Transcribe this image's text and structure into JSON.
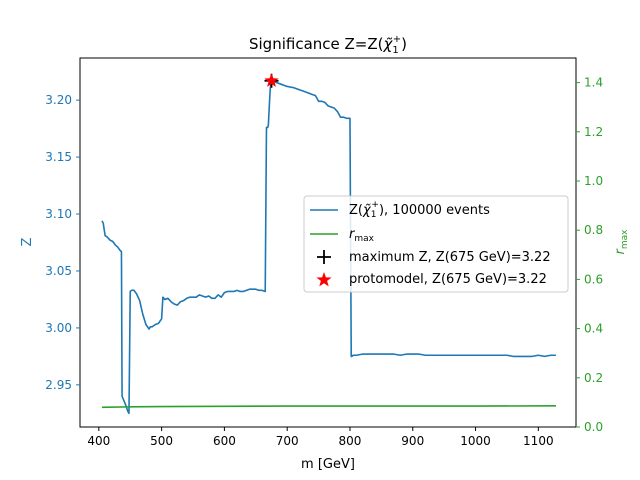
{
  "chart_data": {
    "type": "line",
    "title": "Significance Z=Z(χ̃₁⁺)",
    "xlabel": "m [GeV]",
    "ylabel_left": "Z",
    "ylabel_right": "r_max",
    "xlim": [
      370,
      1160
    ],
    "ylim_left": [
      2.913,
      3.237
    ],
    "ylim_right": [
      0.0,
      1.5
    ],
    "x_ticks": [
      400,
      500,
      600,
      700,
      800,
      900,
      1000,
      1100
    ],
    "y_ticks_left": [
      2.95,
      3.0,
      3.05,
      3.1,
      3.15,
      3.2
    ],
    "y_ticks_right": [
      0.0,
      0.2,
      0.4,
      0.6,
      0.8,
      1.0,
      1.2,
      1.4
    ],
    "grid": false,
    "legend_position": "center-right",
    "colors": {
      "z": "#1f77b4",
      "rmax": "#2ca02c",
      "max": "#000000",
      "proto": "#ff0000"
    },
    "series": [
      {
        "name": "Z(χ̃₁⁺), 100000 events",
        "axis": "left",
        "x": [
          405,
          407,
          410,
          413,
          418,
          422,
          426,
          430,
          434,
          436,
          437,
          440,
          443,
          446,
          448,
          450,
          452,
          456,
          460,
          465,
          470,
          475,
          480,
          482,
          485,
          490,
          495,
          500,
          502,
          505,
          510,
          515,
          520,
          525,
          530,
          535,
          540,
          545,
          550,
          555,
          560,
          565,
          570,
          575,
          580,
          585,
          590,
          595,
          600,
          605,
          610,
          615,
          620,
          625,
          630,
          635,
          640,
          645,
          650,
          655,
          660,
          665,
          667,
          669,
          670,
          672,
          673,
          675,
          678,
          680,
          685,
          690,
          700,
          710,
          720,
          730,
          740,
          745,
          750,
          755,
          760,
          765,
          770,
          775,
          780,
          785,
          790,
          795,
          800,
          802,
          803,
          805,
          810,
          820,
          830,
          840,
          850,
          860,
          870,
          880,
          890,
          900,
          910,
          920,
          930,
          940,
          950,
          960,
          970,
          980,
          990,
          1000,
          1010,
          1020,
          1030,
          1040,
          1050,
          1060,
          1070,
          1080,
          1090,
          1100,
          1110,
          1120,
          1128
        ],
        "y": [
          3.094,
          3.092,
          3.081,
          3.08,
          3.077,
          3.076,
          3.073,
          3.071,
          3.068,
          3.067,
          2.94,
          2.936,
          2.932,
          2.927,
          2.925,
          3.032,
          3.033,
          3.033,
          3.03,
          3.024,
          3.012,
          3.003,
          2.999,
          3.001,
          3.001,
          3.003,
          3.004,
          3.008,
          3.027,
          3.025,
          3.026,
          3.023,
          3.021,
          3.02,
          3.023,
          3.024,
          3.026,
          3.027,
          3.027,
          3.027,
          3.029,
          3.028,
          3.027,
          3.028,
          3.026,
          3.026,
          3.029,
          3.027,
          3.031,
          3.032,
          3.032,
          3.032,
          3.033,
          3.032,
          3.032,
          3.033,
          3.034,
          3.034,
          3.034,
          3.033,
          3.033,
          3.032,
          3.176,
          3.176,
          3.178,
          3.2,
          3.21,
          3.217,
          3.217,
          3.216,
          3.215,
          3.214,
          3.212,
          3.211,
          3.209,
          3.207,
          3.205,
          3.204,
          3.199,
          3.199,
          3.198,
          3.195,
          3.194,
          3.193,
          3.19,
          3.185,
          3.185,
          3.184,
          3.184,
          2.975,
          2.975,
          2.976,
          2.976,
          2.977,
          2.977,
          2.977,
          2.977,
          2.977,
          2.977,
          2.976,
          2.977,
          2.977,
          2.977,
          2.976,
          2.976,
          2.976,
          2.976,
          2.976,
          2.976,
          2.976,
          2.976,
          2.976,
          2.976,
          2.976,
          2.976,
          2.976,
          2.976,
          2.975,
          2.975,
          2.975,
          2.975,
          2.976,
          2.975,
          2.976,
          2.976
        ]
      },
      {
        "name": "r_max",
        "axis": "right",
        "x": [
          405,
          450,
          500,
          600,
          700,
          800,
          900,
          1000,
          1128
        ],
        "y": [
          0.08,
          0.082,
          0.083,
          0.084,
          0.085,
          0.085,
          0.085,
          0.085,
          0.086
        ]
      }
    ],
    "markers": [
      {
        "name": "maximum Z, Z(675 GeV)=3.22",
        "x": 675,
        "y": 3.217,
        "symbol": "plus"
      },
      {
        "name": "protomodel, Z(675 GeV)=3.22",
        "x": 675,
        "y": 3.217,
        "symbol": "star"
      }
    ],
    "legend": {
      "z_name": "Z(",
      "z_chi": "χ̃",
      "z_sub": "1",
      "z_sup": "+",
      "z_rest": "), 100000 events",
      "rmax_r": "r",
      "rmax_sub": "max",
      "max_text": "maximum Z, Z(675 GeV)=3.22",
      "proto_text": "protomodel, Z(675 GeV)=3.22"
    },
    "title_parts": {
      "pre": "Significance Z=Z(",
      "chi": "χ̃",
      "sub": "1",
      "sup": "+",
      "post": ")"
    },
    "right_label_parts": {
      "r": "r",
      "sub": "max"
    }
  }
}
